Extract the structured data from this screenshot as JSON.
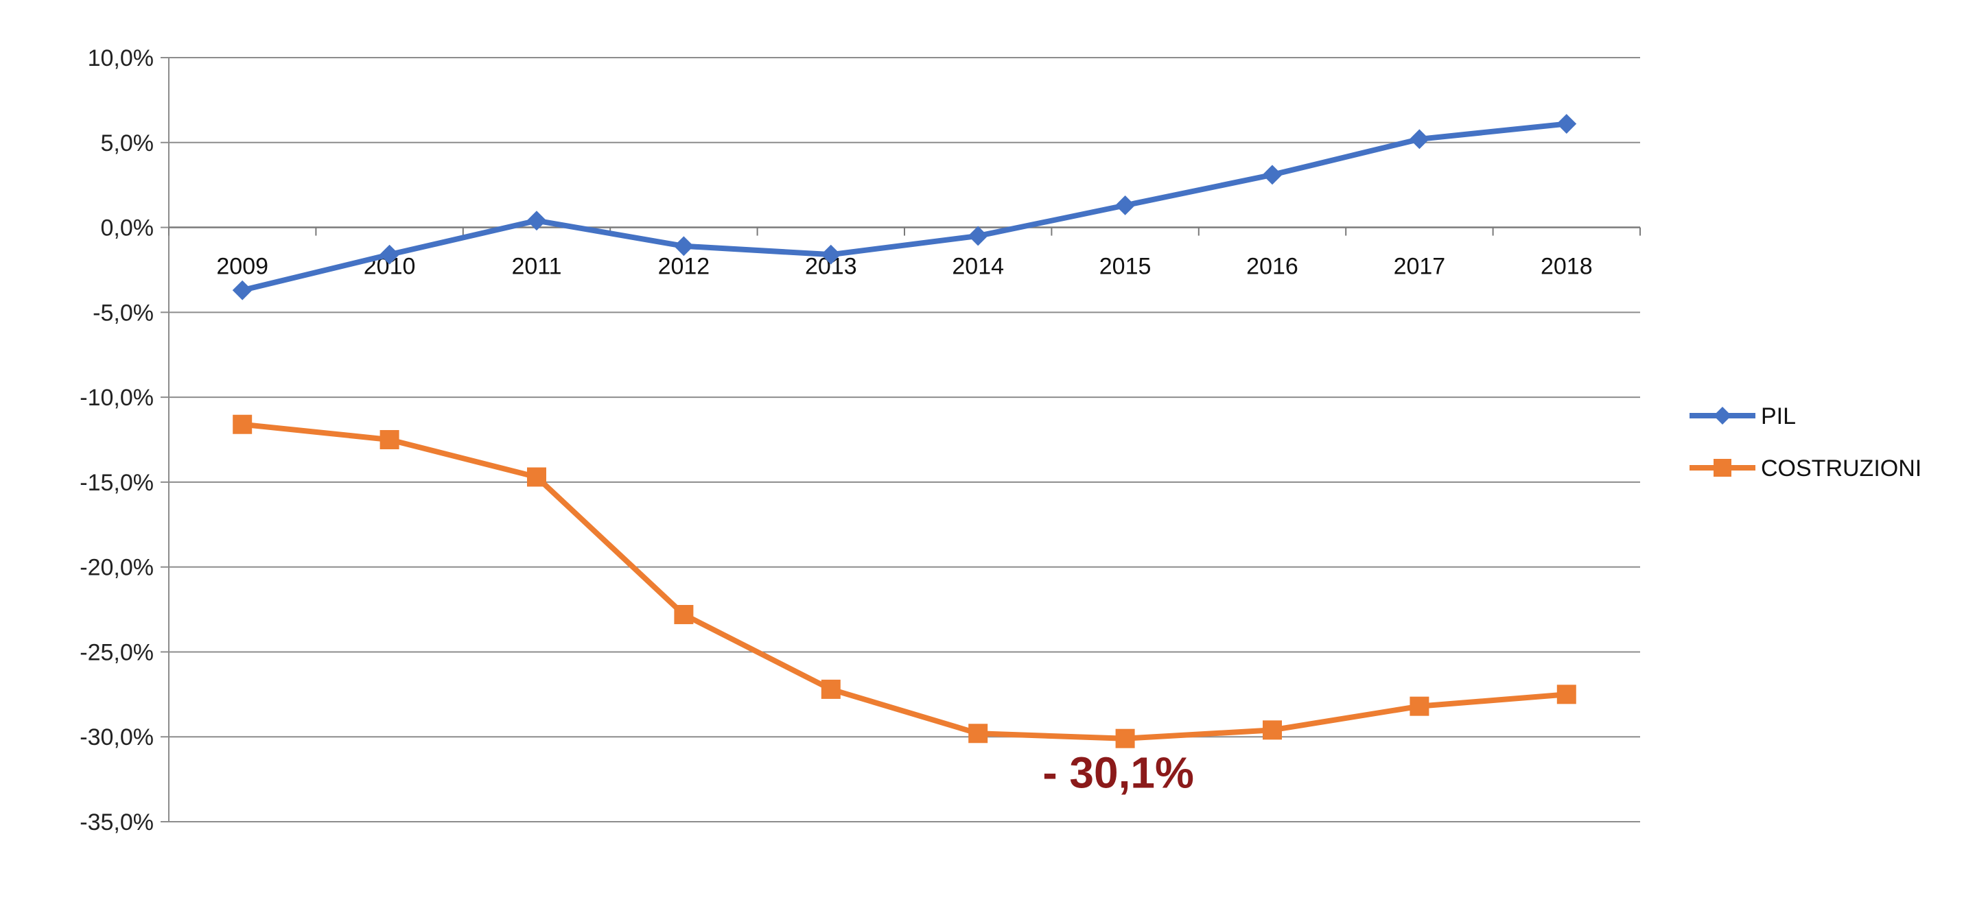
{
  "chart_data": {
    "type": "line",
    "title": "",
    "xlabel": "",
    "ylabel": "",
    "x": [
      "2009",
      "2010",
      "2011",
      "2012",
      "2013",
      "2014",
      "2015",
      "2016",
      "2017",
      "2018"
    ],
    "ylim": [
      -35,
      10
    ],
    "ytick_values": [
      10,
      5,
      0,
      -5,
      -10,
      -15,
      -20,
      -25,
      -30,
      -35
    ],
    "ytick_labels": [
      "10,0%",
      "5,0%",
      "0,0%",
      "-5,0%",
      "-10,0%",
      "-15,0%",
      "-20,0%",
      "-25,0%",
      "-30,0%",
      "-35,0%"
    ],
    "grid": true,
    "legend_position": "right",
    "series": [
      {
        "name": "PIL",
        "color": "#4472C4",
        "marker": "diamond",
        "values": [
          -3.7,
          -1.6,
          0.4,
          -1.1,
          -1.6,
          -0.5,
          1.3,
          3.1,
          5.2,
          6.1
        ]
      },
      {
        "name": "COSTRUZIONI",
        "color": "#ED7D31",
        "marker": "square",
        "values": [
          -11.6,
          -12.5,
          -14.7,
          -22.8,
          -27.2,
          -29.8,
          -30.1,
          -29.6,
          -28.2,
          -27.5
        ]
      }
    ],
    "annotations": [
      {
        "text": "- 30,1%",
        "x": "2015",
        "y": -30.1,
        "color": "#8B1A1A"
      }
    ]
  }
}
